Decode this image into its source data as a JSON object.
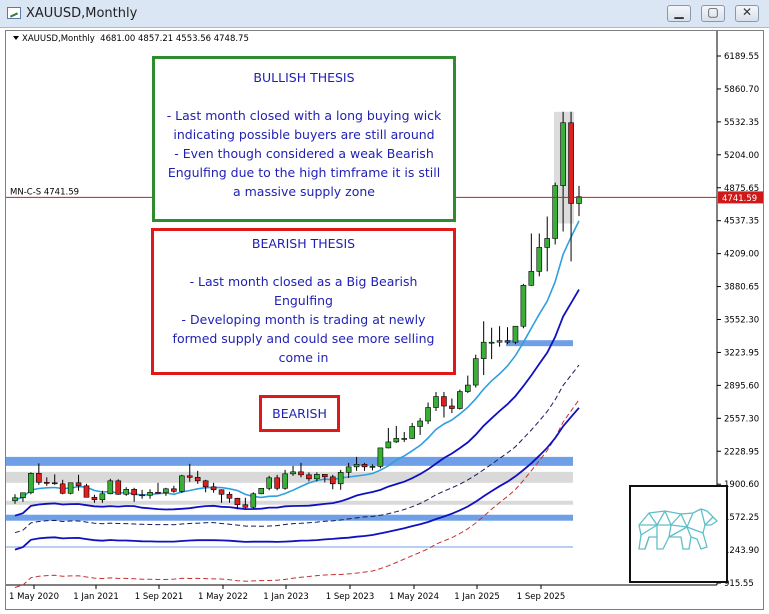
{
  "window": {
    "title": "XAUUSD,Monthly",
    "minimize_glyph": "▁",
    "maximize_glyph": "▢",
    "close_glyph": "✕"
  },
  "chart_header": {
    "symbol_label": "XAUUSD,Monthly",
    "ohlc": "4681.00 4857.21 4553.56 4748.75"
  },
  "bullish_thesis": {
    "heading": "BULLISH THESIS",
    "lines": [
      "- Last month closed with a long buying wick",
      "indicating possible buyers are still around",
      "- Even though considered a weak Bearish",
      "Engulfing due to the high timframe it is still",
      "a massive supply zone"
    ]
  },
  "bearish_thesis": {
    "heading": "BEARISH THESIS",
    "lines": [
      "- Last month closed as a Big Bearish",
      "Engulfing",
      "- Developing month is trading at newly",
      "formed supply and could see more selling",
      "come in"
    ]
  },
  "verdict": "BEARISH",
  "horizontal_line": {
    "label": "MN-C-S 4741.59",
    "price": 4741.59
  },
  "current_price_tag": "4741.59",
  "colors": {
    "bull_candle": "#38b038",
    "bear_candle": "#e02020",
    "price_line": "#d01818",
    "zone_blue": "#6f9fe6",
    "zone_gray": "#d9d9d9",
    "ma_light": "#2f9fe0",
    "ma_dark": "#1010c0",
    "ma_dash_dark": "#1a1a5a",
    "ma_dash_red": "#c83030",
    "logo_teal": "#5fbfc7"
  },
  "logo": {
    "icon": "geometric-bear-icon"
  },
  "chart_data": {
    "type": "candlestick",
    "timeframe": "Monthly",
    "y_axis_ticks": [
      "6189.55",
      "5860.70",
      "5532.35",
      "5204.00",
      "4875.65",
      "4537.35",
      "4209.00",
      "3880.65",
      "3552.30",
      "3223.95",
      "2895.60",
      "2557.30",
      "2228.95",
      "1900.60",
      "1572.25",
      "1243.90",
      "915.55"
    ],
    "x_axis_ticks": [
      "1 May 2020",
      "1 Jan 2021",
      "1 Sep 2021",
      "1 May 2022",
      "1 Jan 2023",
      "1 Sep 2023",
      "1 May 2024",
      "1 Jan 2025",
      "1 Sep 2025"
    ],
    "y_range": [
      915.55,
      6189.55
    ],
    "candles": [
      {
        "o": 1700,
        "h": 1765,
        "l": 1670,
        "c": 1730
      },
      {
        "o": 1730,
        "h": 1780,
        "l": 1690,
        "c": 1780
      },
      {
        "o": 1780,
        "h": 1985,
        "l": 1765,
        "c": 1975
      },
      {
        "o": 1975,
        "h": 2075,
        "l": 1860,
        "c": 1885
      },
      {
        "o": 1885,
        "h": 1935,
        "l": 1850,
        "c": 1880
      },
      {
        "o": 1880,
        "h": 1965,
        "l": 1860,
        "c": 1870
      },
      {
        "o": 1870,
        "h": 1910,
        "l": 1765,
        "c": 1775
      },
      {
        "o": 1775,
        "h": 1880,
        "l": 1765,
        "c": 1880
      },
      {
        "o": 1880,
        "h": 1960,
        "l": 1800,
        "c": 1850
      },
      {
        "o": 1850,
        "h": 1870,
        "l": 1760,
        "c": 1735
      },
      {
        "o": 1735,
        "h": 1760,
        "l": 1680,
        "c": 1710
      },
      {
        "o": 1710,
        "h": 1800,
        "l": 1680,
        "c": 1770
      },
      {
        "o": 1770,
        "h": 1920,
        "l": 1765,
        "c": 1900
      },
      {
        "o": 1900,
        "h": 1915,
        "l": 1760,
        "c": 1765
      },
      {
        "o": 1765,
        "h": 1835,
        "l": 1750,
        "c": 1815
      },
      {
        "o": 1815,
        "h": 1830,
        "l": 1690,
        "c": 1760
      },
      {
        "o": 1760,
        "h": 1810,
        "l": 1720,
        "c": 1755
      },
      {
        "o": 1755,
        "h": 1815,
        "l": 1720,
        "c": 1785
      },
      {
        "o": 1785,
        "h": 1880,
        "l": 1780,
        "c": 1780
      },
      {
        "o": 1780,
        "h": 1830,
        "l": 1750,
        "c": 1820
      },
      {
        "o": 1820,
        "h": 1850,
        "l": 1780,
        "c": 1795
      },
      {
        "o": 1795,
        "h": 1960,
        "l": 1780,
        "c": 1950
      },
      {
        "o": 1950,
        "h": 2070,
        "l": 1890,
        "c": 1935
      },
      {
        "o": 1935,
        "h": 2000,
        "l": 1870,
        "c": 1900
      },
      {
        "o": 1900,
        "h": 1910,
        "l": 1785,
        "c": 1840
      },
      {
        "o": 1840,
        "h": 1880,
        "l": 1780,
        "c": 1810
      },
      {
        "o": 1810,
        "h": 1815,
        "l": 1680,
        "c": 1765
      },
      {
        "o": 1765,
        "h": 1790,
        "l": 1680,
        "c": 1725
      },
      {
        "o": 1725,
        "h": 1730,
        "l": 1615,
        "c": 1660
      },
      {
        "o": 1660,
        "h": 1730,
        "l": 1620,
        "c": 1635
      },
      {
        "o": 1635,
        "h": 1785,
        "l": 1620,
        "c": 1770
      },
      {
        "o": 1770,
        "h": 1825,
        "l": 1765,
        "c": 1825
      },
      {
        "o": 1825,
        "h": 1950,
        "l": 1805,
        "c": 1930
      },
      {
        "o": 1930,
        "h": 1960,
        "l": 1805,
        "c": 1825
      },
      {
        "o": 1825,
        "h": 2010,
        "l": 1810,
        "c": 1970
      },
      {
        "o": 1970,
        "h": 2050,
        "l": 1950,
        "c": 1990
      },
      {
        "o": 1990,
        "h": 2080,
        "l": 1935,
        "c": 1960
      },
      {
        "o": 1960,
        "h": 1985,
        "l": 1895,
        "c": 1920
      },
      {
        "o": 1920,
        "h": 1985,
        "l": 1895,
        "c": 1965
      },
      {
        "o": 1965,
        "h": 1950,
        "l": 1885,
        "c": 1940
      },
      {
        "o": 1940,
        "h": 1960,
        "l": 1815,
        "c": 1870
      },
      {
        "o": 1870,
        "h": 2010,
        "l": 1810,
        "c": 1985
      },
      {
        "o": 1985,
        "h": 2080,
        "l": 1930,
        "c": 2040
      },
      {
        "o": 2040,
        "h": 2140,
        "l": 2000,
        "c": 2065
      },
      {
        "o": 2065,
        "h": 2080,
        "l": 2000,
        "c": 2040
      },
      {
        "o": 2040,
        "h": 2065,
        "l": 2005,
        "c": 2045
      },
      {
        "o": 2045,
        "h": 2200,
        "l": 2025,
        "c": 2230
      },
      {
        "o": 2230,
        "h": 2430,
        "l": 2225,
        "c": 2290
      },
      {
        "o": 2290,
        "h": 2450,
        "l": 2280,
        "c": 2325
      },
      {
        "o": 2325,
        "h": 2390,
        "l": 2290,
        "c": 2325
      },
      {
        "o": 2325,
        "h": 2480,
        "l": 2320,
        "c": 2445
      },
      {
        "o": 2445,
        "h": 2530,
        "l": 2360,
        "c": 2500
      },
      {
        "o": 2500,
        "h": 2685,
        "l": 2470,
        "c": 2635
      },
      {
        "o": 2635,
        "h": 2790,
        "l": 2600,
        "c": 2745
      },
      {
        "o": 2745,
        "h": 2790,
        "l": 2535,
        "c": 2650
      },
      {
        "o": 2650,
        "h": 2725,
        "l": 2580,
        "c": 2625
      },
      {
        "o": 2625,
        "h": 2815,
        "l": 2615,
        "c": 2795
      },
      {
        "o": 2795,
        "h": 2955,
        "l": 2780,
        "c": 2860
      },
      {
        "o": 2860,
        "h": 3165,
        "l": 2835,
        "c": 3125
      },
      {
        "o": 3125,
        "h": 3500,
        "l": 2960,
        "c": 3290
      },
      {
        "o": 3290,
        "h": 3435,
        "l": 3120,
        "c": 3290
      },
      {
        "o": 3290,
        "h": 3450,
        "l": 3245,
        "c": 3305
      },
      {
        "o": 3305,
        "h": 3440,
        "l": 3270,
        "c": 3290
      },
      {
        "o": 3290,
        "h": 3440,
        "l": 3270,
        "c": 3450
      },
      {
        "o": 3450,
        "h": 3875,
        "l": 3430,
        "c": 3860
      },
      {
        "o": 3860,
        "h": 4380,
        "l": 3855,
        "c": 4000
      },
      {
        "o": 4000,
        "h": 4380,
        "l": 3950,
        "c": 4240
      },
      {
        "o": 4240,
        "h": 4550,
        "l": 4000,
        "c": 4330
      },
      {
        "o": 4330,
        "h": 4890,
        "l": 4270,
        "c": 4860
      },
      {
        "o": 4860,
        "h": 5600,
        "l": 4400,
        "c": 5490
      },
      {
        "o": 5490,
        "h": 5600,
        "l": 4100,
        "c": 4681
      },
      {
        "o": 4681,
        "h": 4857.21,
        "l": 4553.56,
        "c": 4748.75
      }
    ],
    "zones": [
      {
        "color": "blue",
        "from": 3250,
        "to": 3310
      },
      {
        "color": "blue",
        "from": 2050,
        "to": 2140
      },
      {
        "color": "gray",
        "from": 1780,
        "to": 1990
      },
      {
        "color": "gray",
        "from": 1660,
        "to": 1700
      },
      {
        "color": "blue",
        "from": 1500,
        "to": 1560
      }
    ]
  }
}
